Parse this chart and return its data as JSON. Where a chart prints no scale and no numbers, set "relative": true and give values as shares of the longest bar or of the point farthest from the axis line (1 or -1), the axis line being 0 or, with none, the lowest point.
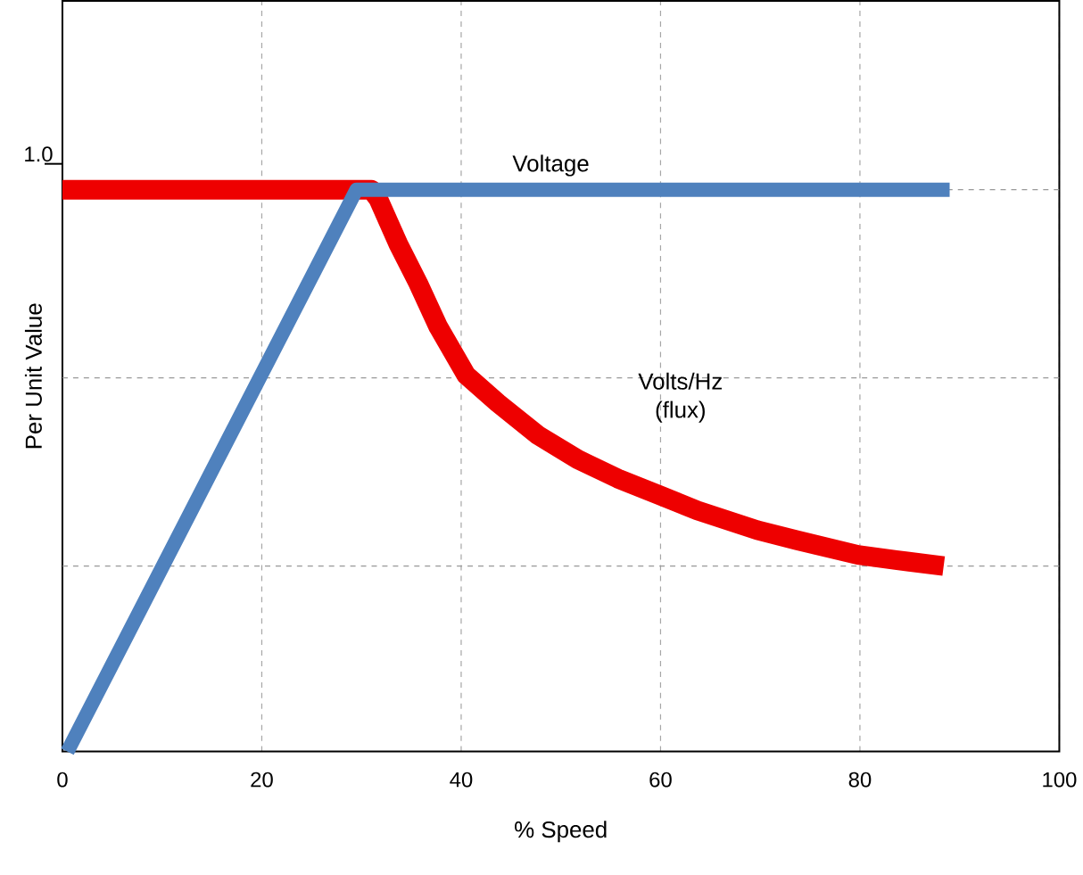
{
  "chart_data": {
    "type": "line",
    "relative": true,
    "xlabel": "% Speed",
    "ylabel": "Per Unit Value",
    "xlim": [
      0,
      100
    ],
    "xticks": [
      0,
      20,
      40,
      60,
      80,
      100
    ],
    "grid": "x",
    "line_style": "solid",
    "marker": "none",
    "annotations": [
      "1.0"
    ],
    "ref_lines": [
      {
        "axis": "y",
        "value": 1,
        "color": "#999999",
        "line_style": "dashed"
      },
      {
        "axis": "y",
        "value": 0.665,
        "color": "#999999",
        "line_style": "dashed"
      },
      {
        "axis": "y",
        "value": 0.33,
        "color": "#999999",
        "line_style": "dashed"
      }
    ],
    "series": [
      {
        "name": "Voltage",
        "color": "#4f81bd",
        "x": [
          0.5,
          29.5,
          89
        ],
        "values": [
          0,
          1,
          1
        ]
      },
      {
        "name": "Volts/Hz (flux)",
        "color": "#ee0000",
        "x": [
          0,
          31,
          31.7,
          33.7,
          35.7,
          37.7,
          40.5,
          43.7,
          47.7,
          51.7,
          55.7,
          59.8,
          63.7,
          69.7,
          73.7,
          79.8,
          83.6,
          88.4
        ],
        "values": [
          1,
          1,
          0.983,
          0.903,
          0.833,
          0.756,
          0.67,
          0.62,
          0.563,
          0.52,
          0.486,
          0.457,
          0.429,
          0.394,
          0.376,
          0.35,
          0.341,
          0.33
        ]
      }
    ]
  }
}
